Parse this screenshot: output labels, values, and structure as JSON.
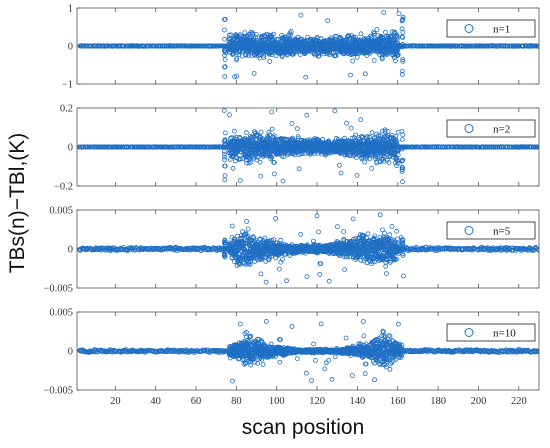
{
  "chart_data": {
    "type": "scatter",
    "xlabel": "scan position",
    "ylabel": "TBs(n)−TBl,(K)",
    "xlim": [
      1,
      230
    ],
    "x_ticks": [
      20,
      40,
      60,
      80,
      100,
      120,
      140,
      160,
      180,
      200,
      220
    ],
    "marker": "open-circle",
    "marker_color": "#1f6fc5",
    "grid": false,
    "legend_placement": "top-right",
    "panels": [
      {
        "legend": "n=1",
        "ylim": [
          -1,
          1
        ],
        "y_ticks": [
          1,
          0,
          -1
        ],
        "y_tick_labels": [
          "1",
          "0",
          "−1"
        ],
        "edge_noise": 0.012,
        "spike_positions": [
          74,
          162
        ],
        "spike_range": [
          -0.95,
          0.9
        ],
        "cloud_envelope": [
          [
            76,
            0.42
          ],
          [
            85,
            0.5
          ],
          [
            95,
            0.4
          ],
          [
            105,
            0.33
          ],
          [
            120,
            0.3
          ],
          [
            135,
            0.35
          ],
          [
            150,
            0.42
          ],
          [
            160,
            0.48
          ]
        ],
        "outlier_max": 0.9
      },
      {
        "legend": "n=2",
        "ylim": [
          -0.2,
          0.2
        ],
        "y_ticks": [
          0.2,
          0,
          -0.2
        ],
        "y_tick_labels": [
          "0.2",
          "0",
          "−0.2"
        ],
        "edge_noise": 0.002,
        "spike_positions": [
          74,
          162
        ],
        "spike_range": [
          -0.19,
          0.13
        ],
        "cloud_envelope": [
          [
            76,
            0.08
          ],
          [
            85,
            0.12
          ],
          [
            95,
            0.09
          ],
          [
            105,
            0.06
          ],
          [
            120,
            0.05
          ],
          [
            135,
            0.07
          ],
          [
            150,
            0.1
          ],
          [
            160,
            0.12
          ]
        ],
        "outlier_max": 0.19
      },
      {
        "legend": "n=5",
        "ylim": [
          -0.005,
          0.005
        ],
        "y_ticks": [
          0.005,
          0,
          -0.005
        ],
        "y_tick_labels": [
          "0.005",
          "0",
          "−0.005"
        ],
        "edge_noise": 0.0003,
        "spike_positions": [
          74,
          162
        ],
        "spike_range": [
          -0.0012,
          0.0012
        ],
        "cloud_envelope": [
          [
            76,
            0.0015
          ],
          [
            84,
            0.0035
          ],
          [
            95,
            0.0018
          ],
          [
            110,
            0.0007
          ],
          [
            125,
            0.0007
          ],
          [
            140,
            0.002
          ],
          [
            152,
            0.0035
          ],
          [
            160,
            0.002
          ]
        ],
        "outlier_max": 0.0045
      },
      {
        "legend": "n=10",
        "ylim": [
          -0.005,
          0.005
        ],
        "y_ticks": [
          0.005,
          0,
          -0.005
        ],
        "y_tick_labels": [
          "0.005",
          "0",
          "−0.005"
        ],
        "edge_noise": 0.00025,
        "spike_positions": [],
        "spike_range": [
          0,
          0
        ],
        "cloud_envelope": [
          [
            76,
            0.001
          ],
          [
            85,
            0.0028
          ],
          [
            95,
            0.0012
          ],
          [
            110,
            0.0003
          ],
          [
            130,
            0.0003
          ],
          [
            145,
            0.0013
          ],
          [
            153,
            0.0032
          ],
          [
            162,
            0.001
          ]
        ],
        "outlier_max": 0.004
      }
    ]
  }
}
